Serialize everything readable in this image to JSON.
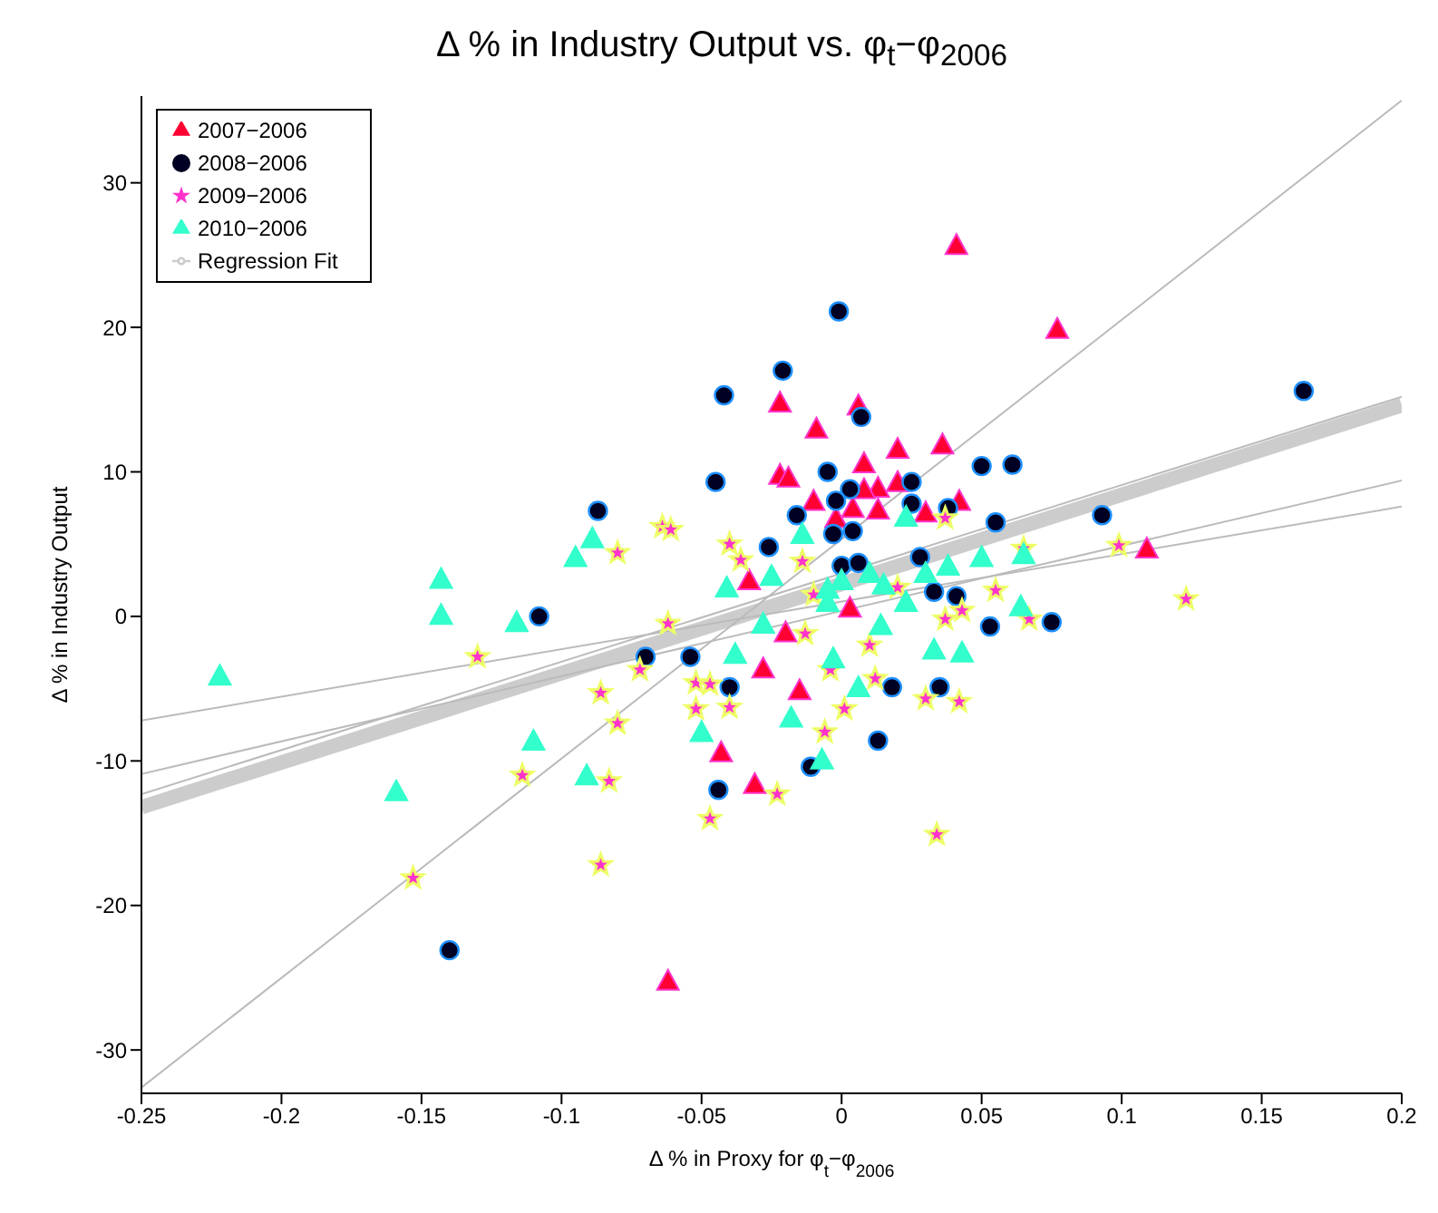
{
  "chart_data": {
    "type": "scatter",
    "title": "Δ % in Industry Output vs. φ$_{t}$−φ$_{2006}$",
    "xlabel": "Δ % in Proxy for φ$_{t}$−φ$_{2006}$",
    "ylabel": "Δ % in Industry Output",
    "xlim": [
      -0.25,
      0.2
    ],
    "xticks": [
      -0.25,
      -0.2,
      -0.15,
      -0.1,
      -0.05,
      0,
      0.05,
      0.1,
      0.15,
      0.2
    ],
    "ylim": [
      -33,
      36
    ],
    "yticks": [
      -30,
      -20,
      -10,
      0,
      10,
      20,
      30
    ],
    "grid": false,
    "legend": "top left",
    "series": [
      {
        "name": "2007−2006",
        "color": "#ff0033",
        "marker": "triangle",
        "x": [
          0.041,
          0.077,
          -0.022,
          0.006,
          -0.009,
          0.02,
          0.036,
          0.008,
          -0.022,
          -0.019,
          0.013,
          0.008,
          0.02,
          -0.01,
          -0.002,
          0.004,
          0.013,
          0.03,
          0.042,
          -0.033,
          -0.028,
          -0.015,
          -0.043,
          -0.031,
          -0.02,
          0.109,
          -0.062,
          0.003
        ],
        "values": [
          25.7,
          19.9,
          14.8,
          14.6,
          13.0,
          11.6,
          11.9,
          10.6,
          9.8,
          9.6,
          8.9,
          8.8,
          9.3,
          8.0,
          6.8,
          7.5,
          7.4,
          7.2,
          8.0,
          2.5,
          -3.6,
          -5.1,
          -9.4,
          -11.6,
          -1.1,
          4.7,
          -25.2,
          0.6
        ]
      },
      {
        "name": "2008−2006",
        "color": "#000022",
        "marker": "circle",
        "x": [
          -0.14,
          -0.108,
          -0.07,
          -0.054,
          -0.04,
          -0.044,
          -0.011,
          0.013,
          0.018,
          0.035,
          0.033,
          0.041,
          0.053,
          0.075,
          0.093,
          0.165,
          -0.001,
          -0.021,
          -0.042,
          0.007,
          -0.045,
          -0.005,
          0.05,
          0.061,
          0.025,
          0.003,
          -0.002,
          -0.016,
          0.025,
          0.038,
          -0.003,
          0.004,
          -0.026,
          0.055,
          -0.087,
          0,
          0.006,
          0.028
        ],
        "values": [
          -23.1,
          0.0,
          -2.8,
          -2.8,
          -4.9,
          -12.0,
          -10.4,
          -8.6,
          -4.9,
          -4.9,
          1.7,
          1.4,
          -0.7,
          -0.4,
          7.0,
          15.6,
          21.1,
          17.0,
          15.3,
          13.8,
          9.3,
          10.0,
          10.4,
          10.5,
          9.3,
          8.8,
          8.0,
          7.0,
          7.8,
          7.5,
          5.7,
          5.9,
          4.8,
          6.5,
          7.3,
          3.5,
          3.7,
          4.1
        ]
      },
      {
        "name": "2009−2006",
        "color": "#ff33cc",
        "marker": "star",
        "x": [
          -0.08,
          -0.064,
          -0.13,
          -0.072,
          -0.086,
          -0.08,
          -0.114,
          -0.083,
          -0.153,
          -0.086,
          -0.062,
          -0.052,
          -0.047,
          -0.052,
          -0.04,
          -0.047,
          -0.023,
          -0.006,
          0.001,
          0.012,
          0.03,
          0.042,
          0.034,
          0.037,
          0.043,
          0.055,
          0.067,
          -0.013,
          -0.004,
          -0.036,
          -0.04,
          0.099,
          0.123,
          -0.061,
          0.037,
          0.065,
          -0.014,
          -0.01,
          0.02,
          0.01
        ],
        "values": [
          4.4,
          6.2,
          -2.8,
          -3.7,
          -5.3,
          -7.4,
          -11.0,
          -11.4,
          -18.1,
          -17.2,
          -0.5,
          -4.6,
          -4.7,
          -6.4,
          -6.3,
          -14.0,
          -12.3,
          -8.0,
          -6.4,
          -4.3,
          -5.7,
          -5.9,
          -15.1,
          -0.2,
          0.4,
          1.8,
          -0.2,
          -1.2,
          -3.7,
          3.9,
          5.0,
          4.9,
          1.2,
          6.0,
          6.8,
          4.7,
          3.8,
          1.5,
          2.0,
          -2.0
        ]
      },
      {
        "name": "2010−2006",
        "color": "#33ffcc",
        "marker": "triangle",
        "x": [
          -0.222,
          -0.159,
          -0.143,
          -0.143,
          -0.116,
          -0.11,
          -0.091,
          -0.095,
          -0.089,
          -0.041,
          -0.038,
          -0.05,
          -0.018,
          -0.007,
          0.006,
          0.033,
          0.043,
          0.014,
          -0.025,
          -0.005,
          0.023,
          0.05,
          0.064,
          -0.028,
          -0.003,
          0.023,
          -0.014,
          0.038,
          0,
          0.01,
          -0.005,
          0.015,
          0.03,
          0.065
        ],
        "values": [
          -4.1,
          -12.1,
          2.6,
          0.1,
          -0.4,
          -8.6,
          -11.0,
          4.1,
          5.4,
          2.0,
          -2.6,
          -8.0,
          -7.0,
          -9.9,
          -4.9,
          -2.3,
          -2.5,
          -0.6,
          2.8,
          1.9,
          1.0,
          4.1,
          0.7,
          -0.5,
          -2.9,
          6.9,
          5.7,
          3.5,
          2.5,
          3.0,
          1.0,
          2.2,
          3.0,
          4.3
        ]
      },
      {
        "type": "line",
        "name": "Regression Fit",
        "color": "#cccccc",
        "x": [
          -0.25,
          0.2
        ],
        "values": [
          -13.2,
          14.6
        ]
      },
      {
        "type": "line",
        "color": "#bbbbbb",
        "x": [
          -0.25,
          0.2
        ],
        "values": [
          -32.6,
          35.7
        ]
      },
      {
        "type": "line",
        "color": "#bbbbbb",
        "x": [
          -0.25,
          0.2
        ],
        "values": [
          -7.2,
          7.6
        ]
      },
      {
        "type": "line",
        "color": "#bbbbbb",
        "x": [
          -0.25,
          0.2
        ],
        "values": [
          -10.9,
          9.4
        ]
      },
      {
        "type": "line",
        "color": "#bbbbbb",
        "x": [
          -0.25,
          0.2
        ],
        "values": [
          -12.3,
          15.2
        ]
      }
    ]
  }
}
